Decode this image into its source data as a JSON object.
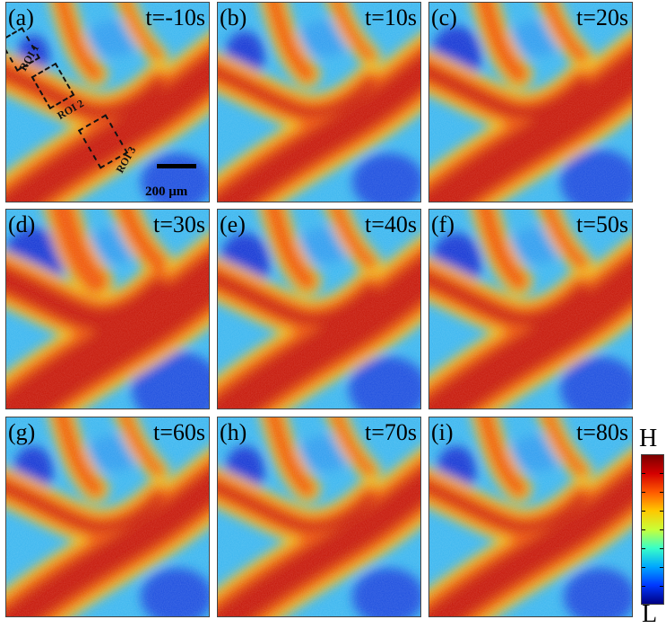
{
  "panels": [
    {
      "label": "(a)",
      "time": "t=-10s",
      "variant": 0
    },
    {
      "label": "(b)",
      "time": "t=10s",
      "variant": 1
    },
    {
      "label": "(c)",
      "time": "t=20s",
      "variant": 2
    },
    {
      "label": "(d)",
      "time": "t=30s",
      "variant": 3
    },
    {
      "label": "(e)",
      "time": "t=40s",
      "variant": 2
    },
    {
      "label": "(f)",
      "time": "t=50s",
      "variant": 2
    },
    {
      "label": "(g)",
      "time": "t=60s",
      "variant": 1
    },
    {
      "label": "(h)",
      "time": "t=70s",
      "variant": 1
    },
    {
      "label": "(i)",
      "time": "t=80s",
      "variant": 1
    }
  ],
  "roi_labels": [
    "ROI 1",
    "ROI 2",
    "ROI 3"
  ],
  "scale_bar": "200 μm",
  "colorbar": {
    "high": "H",
    "low": "L",
    "colors": [
      "#7a0000",
      "#d40000",
      "#ff5a00",
      "#ffc800",
      "#c8ff38",
      "#38ffc8",
      "#00a8ff",
      "#0038ff",
      "#000080"
    ]
  }
}
